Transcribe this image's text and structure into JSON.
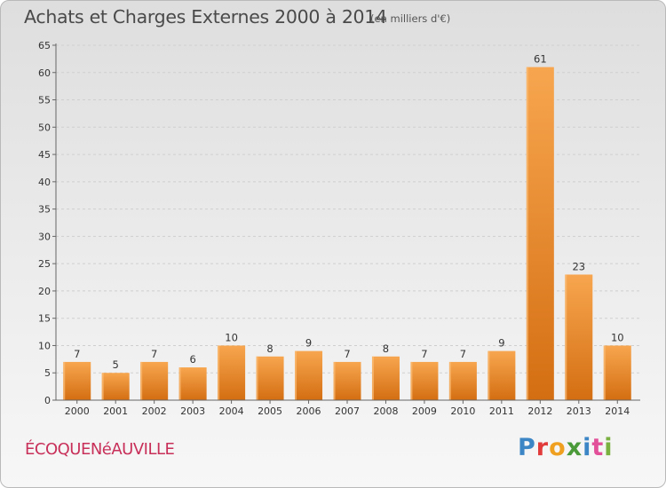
{
  "header": {
    "title": "Achats et Charges Externes 2000 à 2014",
    "subtitle": "(en milliers d'€)"
  },
  "footer": {
    "commune": "ÉCOQUENéAUVILLE",
    "logo_letters": [
      "P",
      "r",
      "o",
      "x",
      "i",
      "t",
      "i"
    ]
  },
  "colors": {
    "bar_light": "#f7a64f",
    "bar_dark": "#d46e12",
    "commune_text": "#c8305a"
  },
  "chart_data": {
    "type": "bar",
    "title": "Achats et Charges Externes 2000 à 2014",
    "subtitle": "(en milliers d'€)",
    "categories": [
      "2000",
      "2001",
      "2002",
      "2003",
      "2004",
      "2005",
      "2006",
      "2007",
      "2008",
      "2009",
      "2010",
      "2011",
      "2012",
      "2013",
      "2014"
    ],
    "values": [
      7,
      5,
      7,
      6,
      10,
      8,
      9,
      7,
      8,
      7,
      7,
      9,
      61,
      23,
      10
    ],
    "ylim": [
      0,
      65
    ],
    "yticks": [
      0,
      5,
      10,
      15,
      20,
      25,
      30,
      35,
      40,
      45,
      50,
      55,
      60,
      65
    ],
    "grid": true,
    "xlabel": "",
    "ylabel": ""
  }
}
